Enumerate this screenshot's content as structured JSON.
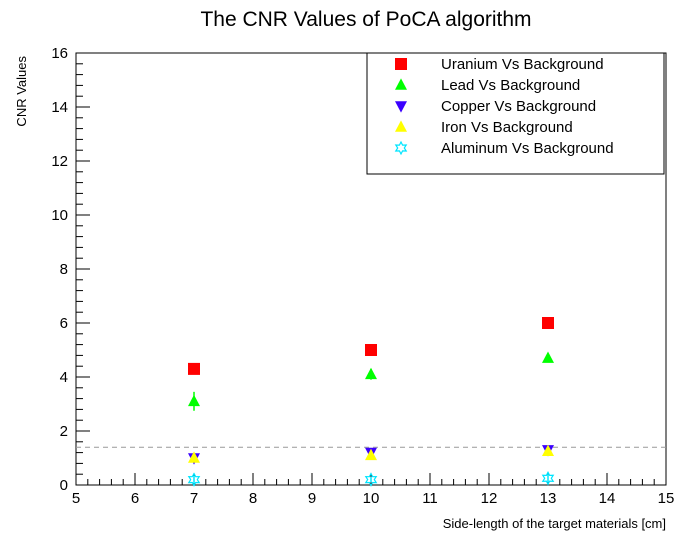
{
  "chart_data": {
    "type": "scatter",
    "title": "The CNR Values of PoCA algorithm",
    "xlabel": "Side-length of the target materials [cm]",
    "ylabel": "CNR Values",
    "xlim": [
      5,
      15
    ],
    "ylim": [
      0,
      16
    ],
    "xticks": [
      5,
      6,
      7,
      8,
      9,
      10,
      11,
      12,
      13,
      14,
      15
    ],
    "yticks": [
      0,
      2,
      4,
      6,
      8,
      10,
      12,
      14,
      16
    ],
    "threshold_line": {
      "y": 1.4,
      "style": "dashed",
      "color": "#999999"
    },
    "legend_position": "top-right",
    "series": [
      {
        "name": "Uranium Vs Background",
        "marker": "square",
        "color": "#ff0000",
        "x": [
          7,
          10,
          13
        ],
        "y": [
          4.3,
          5.0,
          6.0
        ],
        "err": [
          0.15,
          0.1,
          0.1
        ]
      },
      {
        "name": "Lead Vs Background",
        "marker": "triangle-up",
        "color": "#00ff00",
        "x": [
          7,
          10,
          13
        ],
        "y": [
          3.1,
          4.1,
          4.7
        ],
        "err": [
          0.35,
          0.2,
          0.15
        ]
      },
      {
        "name": "Copper Vs Background",
        "marker": "triangle-down",
        "color": "#3b00ff",
        "x": [
          7,
          10,
          13
        ],
        "y": [
          1.0,
          1.2,
          1.3
        ],
        "err": [
          0.1,
          0.05,
          0.05
        ]
      },
      {
        "name": "Iron Vs Background",
        "marker": "triangle-up",
        "color": "#ffff00",
        "x": [
          7,
          10,
          13
        ],
        "y": [
          1.0,
          1.1,
          1.25
        ],
        "err": [
          0.1,
          0.05,
          0.05
        ]
      },
      {
        "name": "Aluminum Vs Background",
        "marker": "star-open",
        "color": "#00e5ff",
        "x": [
          7,
          10,
          13
        ],
        "y": [
          0.2,
          0.2,
          0.25
        ],
        "err": [
          0.15,
          0.1,
          0.15
        ]
      }
    ]
  }
}
